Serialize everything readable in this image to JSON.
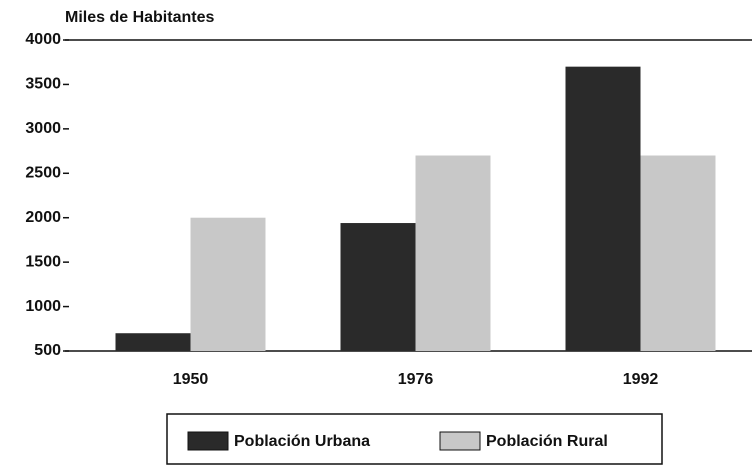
{
  "chart_data": {
    "type": "bar",
    "y_axis_label": "Miles de Habitantes",
    "categories": [
      "1950",
      "1976",
      "1992"
    ],
    "series": [
      {
        "name": "Población Urbana",
        "color": "#2a2a2a",
        "values": [
          700,
          1940,
          3700
        ]
      },
      {
        "name": "Población Rural",
        "color": "#c8c8c8",
        "values": [
          2000,
          2700,
          2700
        ]
      }
    ],
    "ylim": [
      500,
      4000
    ],
    "yticks": [
      500,
      1000,
      1500,
      2000,
      2500,
      3000,
      3500,
      4000
    ],
    "legend": "bottom"
  }
}
